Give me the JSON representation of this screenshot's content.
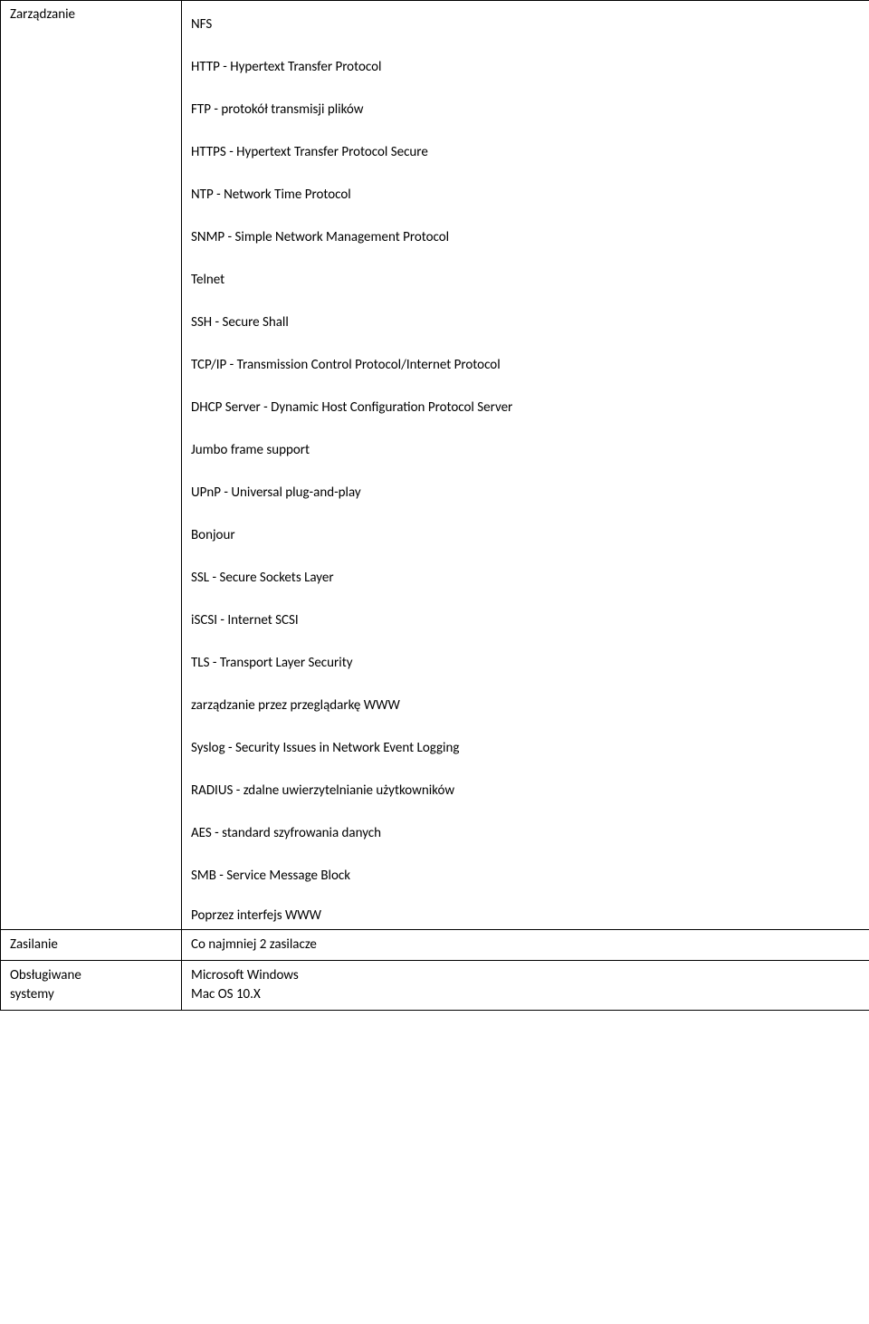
{
  "protocols": [
    "NFS",
    "HTTP - Hypertext Transfer Protocol",
    "FTP - protokół transmisji plików",
    "HTTPS - Hypertext Transfer Protocol Secure",
    "NTP - Network Time Protocol",
    "SNMP - Simple Network Management Protocol",
    "Telnet",
    "SSH - Secure Shall",
    "TCP/IP - Transmission Control Protocol/Internet Protocol",
    "DHCP Server - Dynamic Host Configuration Protocol Server",
    "Jumbo frame support",
    "UPnP - Universal plug-and-play",
    "Bonjour",
    "SSL - Secure Sockets Layer",
    "iSCSI - Internet SCSI",
    "TLS - Transport Layer Security",
    "zarządzanie przez przeglądarkę WWW",
    "Syslog - Security Issues in Network Event Logging",
    "RADIUS - zdalne uwierzytelnianie użytkowników",
    "AES - standard szyfrowania danych",
    "SMB - Service Message Block"
  ],
  "rows": {
    "management": {
      "label": "Zarządzanie",
      "value": "Poprzez interfejs WWW"
    },
    "power": {
      "label": "Zasilanie",
      "value": "Co najmniej 2 zasilacze"
    },
    "supported": {
      "label_line1": "Obsługiwane",
      "label_line2": "systemy",
      "os1": "Microsoft Windows",
      "os2": "Mac OS 10.X"
    }
  }
}
